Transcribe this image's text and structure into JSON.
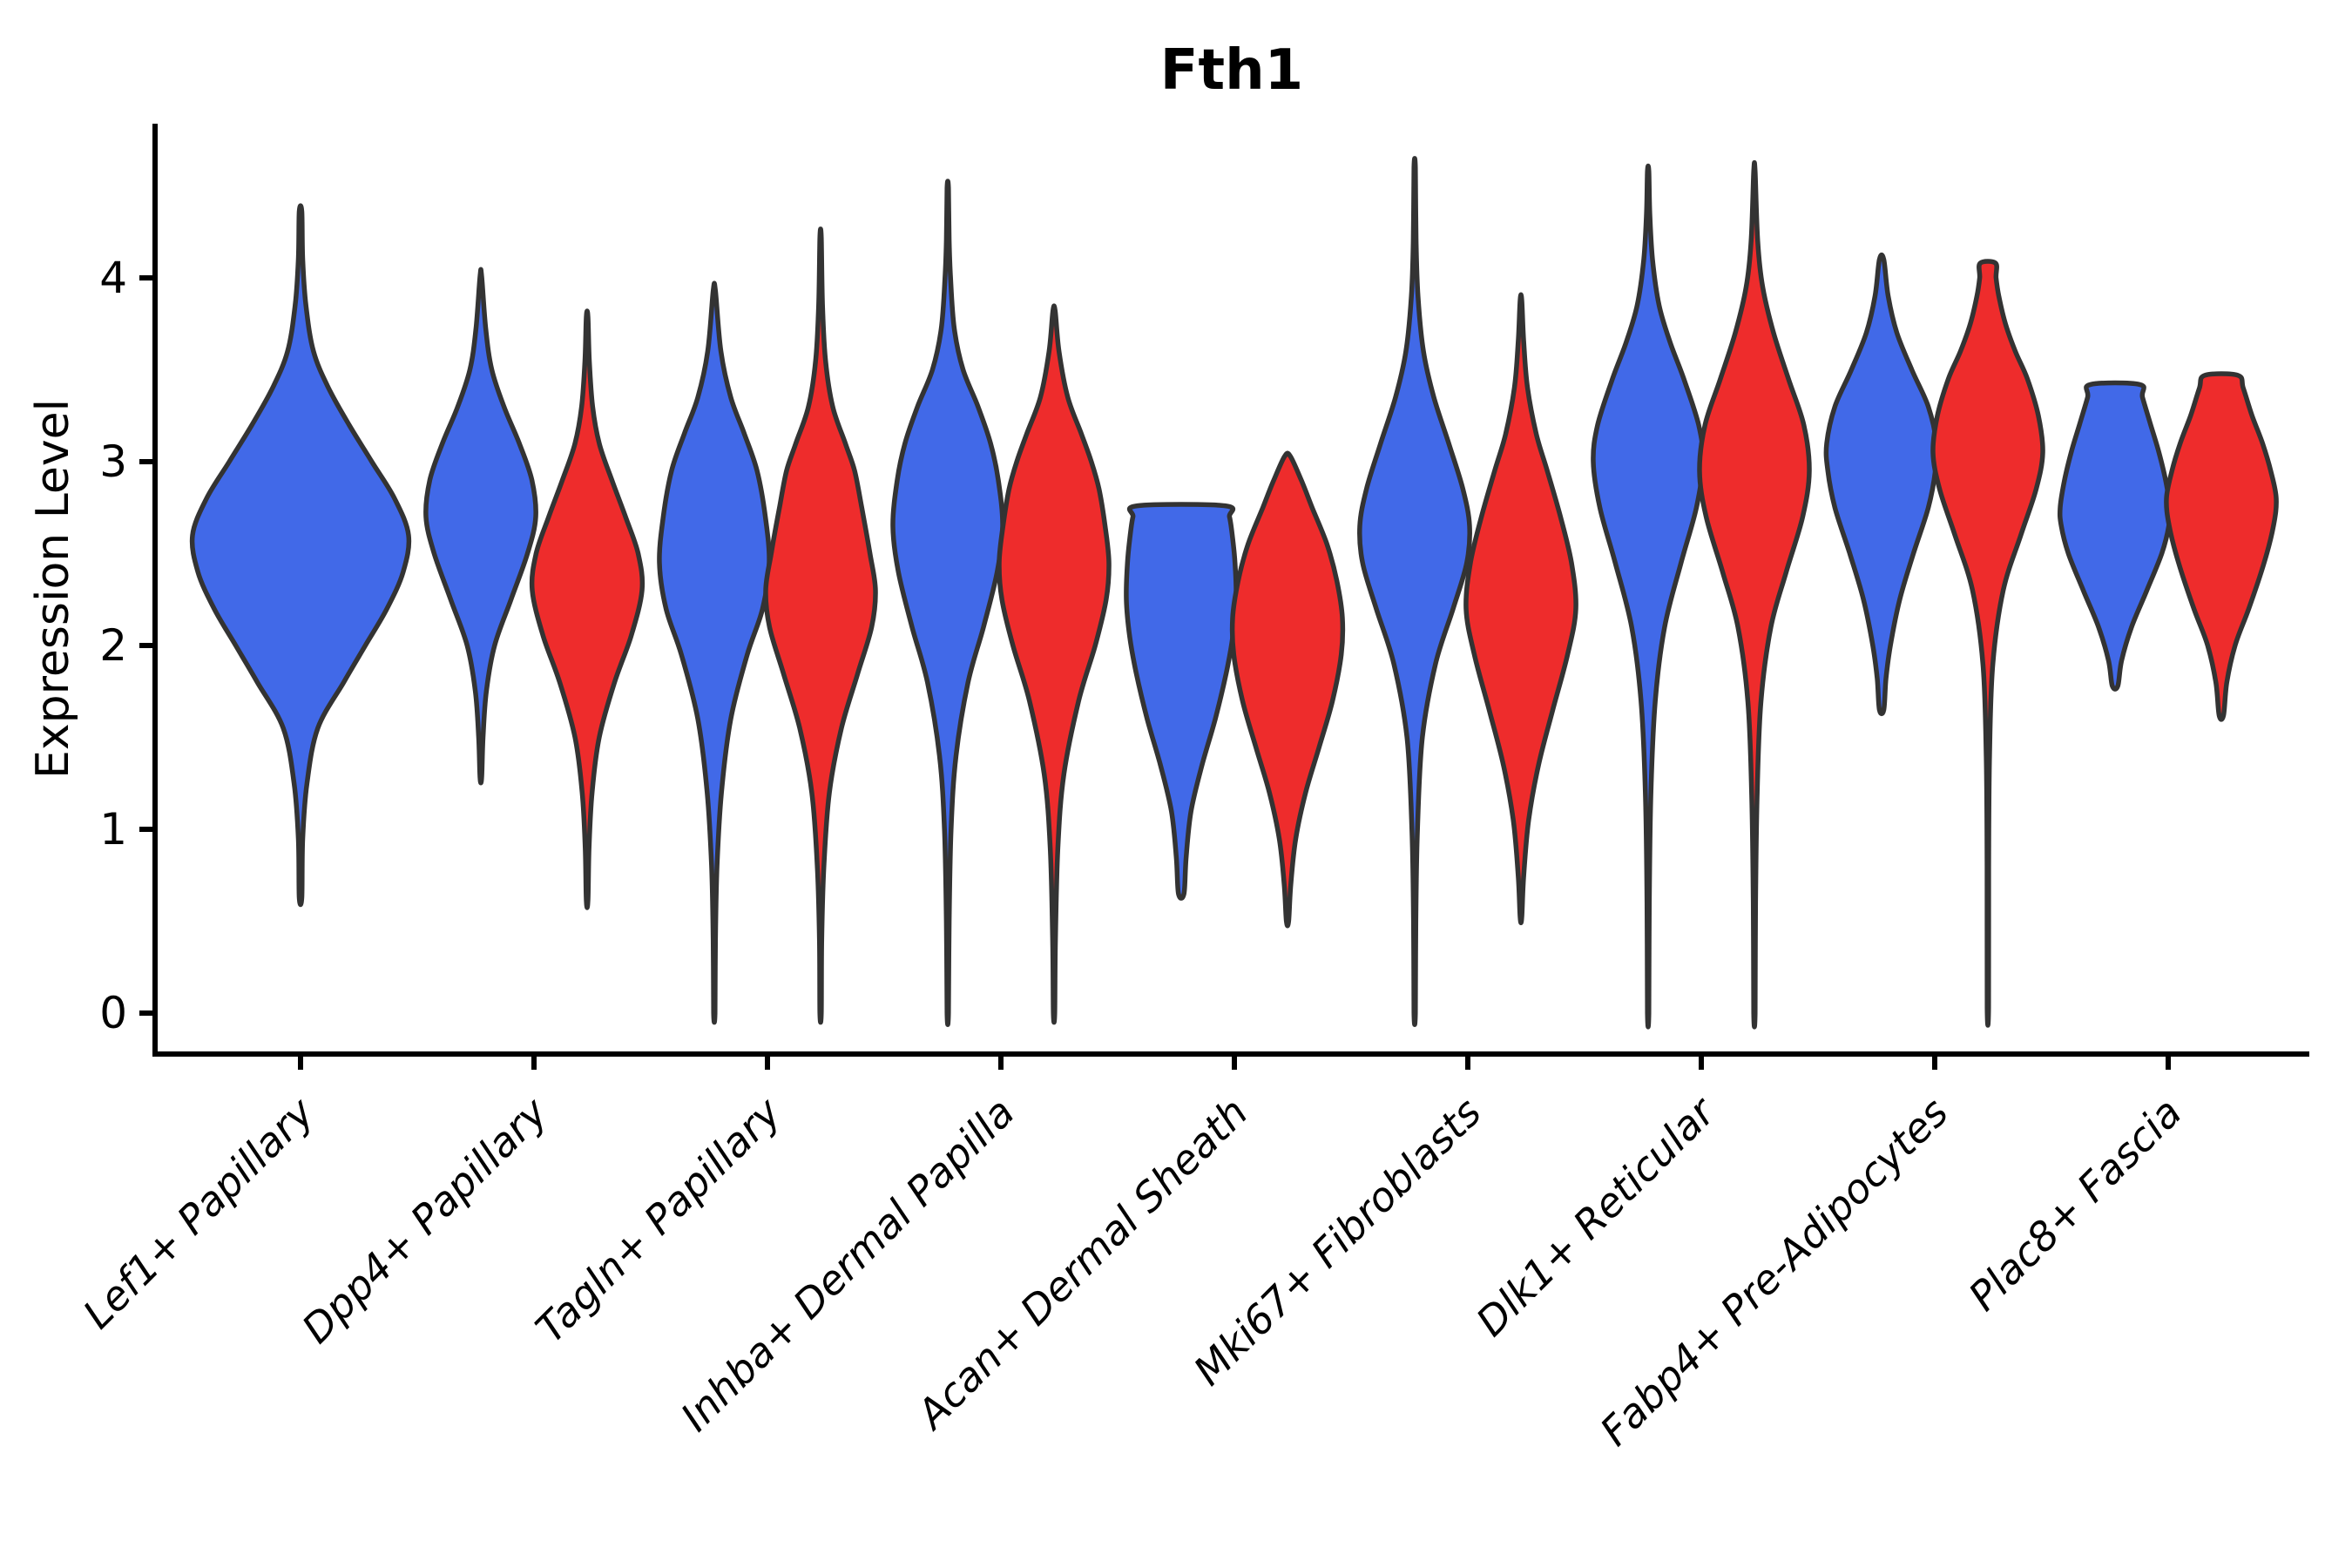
{
  "figure": {
    "background": "#ffffff"
  },
  "chart_data": {
    "type": "violin",
    "title": "Fth1",
    "ylabel": "Expression Level",
    "xlabel": "",
    "yticks": [
      0,
      1,
      2,
      3,
      4
    ],
    "ylim": [
      -0.22,
      4.85
    ],
    "grid": false,
    "legend": "none",
    "categories": [
      "Lef1+ Papillary",
      "Dpp4+ Papillary",
      "Tagln+ Papillary",
      "Inhba+ Dermal Papilla",
      "Acan+ Dermal Sheath",
      "Mki67+ Fibroblasts",
      "Dlk1+ Reticular",
      "Fabp4+ Pre-Adipocytes",
      "Plac8+ Fascia"
    ],
    "series_colors": {
      "blue": "#4169E8",
      "red": "#EE2C2C"
    },
    "outline_color": "#333333",
    "axis_color": "#000000",
    "violins": [
      {
        "category": "Lef1+ Papillary",
        "group": "blue",
        "width": "full",
        "span": [
          0.63,
          4.36
        ],
        "profile": [
          [
            0.63,
            0.01
          ],
          [
            0.95,
            0.02
          ],
          [
            1.25,
            0.06
          ],
          [
            1.55,
            0.16
          ],
          [
            1.8,
            0.4
          ],
          [
            2.0,
            0.6
          ],
          [
            2.2,
            0.8
          ],
          [
            2.4,
            0.95
          ],
          [
            2.6,
            1.0
          ],
          [
            2.8,
            0.87
          ],
          [
            3.0,
            0.66
          ],
          [
            3.2,
            0.45
          ],
          [
            3.4,
            0.26
          ],
          [
            3.6,
            0.12
          ],
          [
            3.85,
            0.05
          ],
          [
            4.1,
            0.02
          ],
          [
            4.36,
            0.01
          ]
        ]
      },
      {
        "category": "Dpp4+ Papillary",
        "group": "blue",
        "width": "half",
        "span": [
          1.28,
          4.01
        ],
        "profile": [
          [
            1.28,
            0.015
          ],
          [
            1.5,
            0.04
          ],
          [
            1.75,
            0.1
          ],
          [
            2.0,
            0.25
          ],
          [
            2.25,
            0.55
          ],
          [
            2.5,
            0.85
          ],
          [
            2.7,
            1.0
          ],
          [
            2.9,
            0.93
          ],
          [
            3.1,
            0.7
          ],
          [
            3.3,
            0.42
          ],
          [
            3.5,
            0.2
          ],
          [
            3.72,
            0.09
          ],
          [
            4.01,
            0.015
          ]
        ]
      },
      {
        "category": "Dpp4+ Papillary",
        "group": "red",
        "width": "half",
        "span": [
          0.61,
          3.79
        ],
        "profile": [
          [
            0.61,
            0.015
          ],
          [
            0.9,
            0.035
          ],
          [
            1.2,
            0.09
          ],
          [
            1.5,
            0.22
          ],
          [
            1.8,
            0.5
          ],
          [
            2.05,
            0.8
          ],
          [
            2.3,
            1.0
          ],
          [
            2.5,
            0.93
          ],
          [
            2.7,
            0.7
          ],
          [
            2.9,
            0.45
          ],
          [
            3.1,
            0.22
          ],
          [
            3.3,
            0.1
          ],
          [
            3.55,
            0.04
          ],
          [
            3.79,
            0.015
          ]
        ]
      },
      {
        "category": "Tagln+ Papillary",
        "group": "blue",
        "width": "half",
        "span": [
          0.0,
          3.93
        ],
        "profile": [
          [
            0.0,
            0.012
          ],
          [
            0.4,
            0.02
          ],
          [
            0.8,
            0.05
          ],
          [
            1.2,
            0.13
          ],
          [
            1.6,
            0.3
          ],
          [
            1.95,
            0.6
          ],
          [
            2.2,
            0.88
          ],
          [
            2.45,
            1.0
          ],
          [
            2.7,
            0.93
          ],
          [
            2.95,
            0.78
          ],
          [
            3.15,
            0.55
          ],
          [
            3.35,
            0.3
          ],
          [
            3.6,
            0.12
          ],
          [
            3.93,
            0.02
          ]
        ]
      },
      {
        "category": "Tagln+ Papillary",
        "group": "red",
        "width": "half",
        "span": [
          0.0,
          4.22
        ],
        "profile": [
          [
            0.0,
            0.012
          ],
          [
            0.4,
            0.02
          ],
          [
            0.8,
            0.06
          ],
          [
            1.2,
            0.16
          ],
          [
            1.55,
            0.38
          ],
          [
            1.85,
            0.68
          ],
          [
            2.1,
            0.93
          ],
          [
            2.3,
            1.0
          ],
          [
            2.5,
            0.9
          ],
          [
            2.75,
            0.75
          ],
          [
            2.95,
            0.62
          ],
          [
            3.1,
            0.45
          ],
          [
            3.3,
            0.22
          ],
          [
            3.55,
            0.09
          ],
          [
            3.85,
            0.035
          ],
          [
            4.22,
            0.012
          ]
        ]
      },
      {
        "category": "Inhba+ Dermal Papilla",
        "group": "blue",
        "width": "half",
        "span": [
          0.0,
          4.49
        ],
        "profile": [
          [
            0.0,
            0.012
          ],
          [
            0.5,
            0.025
          ],
          [
            1.0,
            0.06
          ],
          [
            1.4,
            0.15
          ],
          [
            1.8,
            0.37
          ],
          [
            2.1,
            0.65
          ],
          [
            2.4,
            0.9
          ],
          [
            2.65,
            1.0
          ],
          [
            2.9,
            0.92
          ],
          [
            3.1,
            0.78
          ],
          [
            3.3,
            0.55
          ],
          [
            3.5,
            0.28
          ],
          [
            3.72,
            0.12
          ],
          [
            4.0,
            0.05
          ],
          [
            4.2,
            0.025
          ],
          [
            4.49,
            0.012
          ]
        ]
      },
      {
        "category": "Inhba+ Dermal Papilla",
        "group": "red",
        "width": "half",
        "span": [
          0.0,
          3.82
        ],
        "profile": [
          [
            0.0,
            0.012
          ],
          [
            0.4,
            0.025
          ],
          [
            0.9,
            0.07
          ],
          [
            1.3,
            0.18
          ],
          [
            1.7,
            0.45
          ],
          [
            2.0,
            0.75
          ],
          [
            2.25,
            0.95
          ],
          [
            2.45,
            1.0
          ],
          [
            2.65,
            0.93
          ],
          [
            2.85,
            0.82
          ],
          [
            3.0,
            0.68
          ],
          [
            3.15,
            0.5
          ],
          [
            3.35,
            0.25
          ],
          [
            3.6,
            0.09
          ],
          [
            3.82,
            0.02
          ]
        ]
      },
      {
        "category": "Acan+ Dermal Sheath",
        "group": "blue",
        "width": "half",
        "span": [
          0.65,
          2.76
        ],
        "cap": "flat",
        "profile": [
          [
            0.65,
            0.05
          ],
          [
            0.85,
            0.09
          ],
          [
            1.1,
            0.18
          ],
          [
            1.35,
            0.38
          ],
          [
            1.6,
            0.62
          ],
          [
            1.85,
            0.82
          ],
          [
            2.05,
            0.94
          ],
          [
            2.25,
            1.0
          ],
          [
            2.45,
            0.98
          ],
          [
            2.6,
            0.93
          ],
          [
            2.7,
            0.88
          ],
          [
            2.76,
            0.8
          ]
        ]
      },
      {
        "category": "Acan+ Dermal Sheath",
        "group": "red",
        "width": "half",
        "span": [
          0.5,
          3.03
        ],
        "profile": [
          [
            0.5,
            0.02
          ],
          [
            0.7,
            0.06
          ],
          [
            0.95,
            0.15
          ],
          [
            1.2,
            0.33
          ],
          [
            1.45,
            0.58
          ],
          [
            1.7,
            0.82
          ],
          [
            1.95,
            0.98
          ],
          [
            2.15,
            1.0
          ],
          [
            2.35,
            0.9
          ],
          [
            2.55,
            0.72
          ],
          [
            2.75,
            0.45
          ],
          [
            2.9,
            0.25
          ],
          [
            3.03,
            0.05
          ]
        ]
      },
      {
        "category": "Mki67+ Fibroblasts",
        "group": "blue",
        "width": "half",
        "span": [
          0.0,
          4.6
        ],
        "profile": [
          [
            0.0,
            0.01
          ],
          [
            0.5,
            0.02
          ],
          [
            1.0,
            0.05
          ],
          [
            1.5,
            0.14
          ],
          [
            1.9,
            0.38
          ],
          [
            2.2,
            0.7
          ],
          [
            2.45,
            0.95
          ],
          [
            2.65,
            1.0
          ],
          [
            2.85,
            0.88
          ],
          [
            3.1,
            0.62
          ],
          [
            3.35,
            0.35
          ],
          [
            3.6,
            0.16
          ],
          [
            3.9,
            0.06
          ],
          [
            4.2,
            0.025
          ],
          [
            4.6,
            0.01
          ]
        ]
      },
      {
        "category": "Mki67+ Fibroblasts",
        "group": "red",
        "width": "half",
        "span": [
          0.52,
          3.88
        ],
        "profile": [
          [
            0.52,
            0.015
          ],
          [
            0.75,
            0.05
          ],
          [
            1.05,
            0.14
          ],
          [
            1.35,
            0.32
          ],
          [
            1.65,
            0.58
          ],
          [
            1.95,
            0.85
          ],
          [
            2.2,
            1.0
          ],
          [
            2.45,
            0.92
          ],
          [
            2.7,
            0.72
          ],
          [
            2.95,
            0.48
          ],
          [
            3.15,
            0.28
          ],
          [
            3.4,
            0.12
          ],
          [
            3.65,
            0.05
          ],
          [
            3.88,
            0.015
          ]
        ]
      },
      {
        "category": "Dlk1+ Reticular",
        "group": "blue",
        "width": "half",
        "span": [
          0.0,
          4.58
        ],
        "profile": [
          [
            0.0,
            0.01
          ],
          [
            0.6,
            0.02
          ],
          [
            1.2,
            0.05
          ],
          [
            1.7,
            0.13
          ],
          [
            2.1,
            0.3
          ],
          [
            2.45,
            0.6
          ],
          [
            2.75,
            0.88
          ],
          [
            3.0,
            1.0
          ],
          [
            3.2,
            0.92
          ],
          [
            3.45,
            0.65
          ],
          [
            3.65,
            0.4
          ],
          [
            3.85,
            0.2
          ],
          [
            4.1,
            0.08
          ],
          [
            4.35,
            0.03
          ],
          [
            4.58,
            0.012
          ]
        ]
      },
      {
        "category": "Dlk1+ Reticular",
        "group": "red",
        "width": "half",
        "span": [
          0.0,
          4.58
        ],
        "profile": [
          [
            0.0,
            0.01
          ],
          [
            0.6,
            0.02
          ],
          [
            1.2,
            0.05
          ],
          [
            1.7,
            0.12
          ],
          [
            2.1,
            0.3
          ],
          [
            2.4,
            0.58
          ],
          [
            2.7,
            0.88
          ],
          [
            2.95,
            1.0
          ],
          [
            3.2,
            0.9
          ],
          [
            3.45,
            0.62
          ],
          [
            3.7,
            0.35
          ],
          [
            3.95,
            0.15
          ],
          [
            4.2,
            0.06
          ],
          [
            4.58,
            0.012
          ]
        ]
      },
      {
        "category": "Fabp4+ Pre-Adipocytes",
        "group": "blue",
        "width": "half",
        "span": [
          1.65,
          4.1
        ],
        "profile": [
          [
            1.65,
            0.04
          ],
          [
            1.82,
            0.08
          ],
          [
            2.0,
            0.16
          ],
          [
            2.25,
            0.33
          ],
          [
            2.5,
            0.58
          ],
          [
            2.75,
            0.85
          ],
          [
            2.95,
            0.98
          ],
          [
            3.1,
            1.0
          ],
          [
            3.3,
            0.85
          ],
          [
            3.5,
            0.55
          ],
          [
            3.7,
            0.28
          ],
          [
            3.9,
            0.12
          ],
          [
            4.1,
            0.04
          ]
        ]
      },
      {
        "category": "Fabp4+ Pre-Adipocytes",
        "group": "red",
        "width": "half",
        "span": [
          0.03,
          4.08
        ],
        "cap": "flat",
        "profile": [
          [
            0.03,
            0.008
          ],
          [
            0.8,
            0.015
          ],
          [
            1.4,
            0.03
          ],
          [
            1.9,
            0.09
          ],
          [
            2.3,
            0.28
          ],
          [
            2.6,
            0.6
          ],
          [
            2.85,
            0.88
          ],
          [
            3.05,
            1.0
          ],
          [
            3.25,
            0.92
          ],
          [
            3.45,
            0.72
          ],
          [
            3.6,
            0.5
          ],
          [
            3.75,
            0.32
          ],
          [
            3.9,
            0.2
          ],
          [
            4.0,
            0.15
          ],
          [
            4.08,
            0.14
          ]
        ]
      },
      {
        "category": "Plac8+ Fascia",
        "group": "blue",
        "width": "half",
        "span": [
          1.78,
          3.42
        ],
        "cap": "flat",
        "profile": [
          [
            1.78,
            0.05
          ],
          [
            1.92,
            0.12
          ],
          [
            2.1,
            0.3
          ],
          [
            2.3,
            0.58
          ],
          [
            2.5,
            0.85
          ],
          [
            2.65,
            0.98
          ],
          [
            2.75,
            1.0
          ],
          [
            2.9,
            0.92
          ],
          [
            3.05,
            0.8
          ],
          [
            3.2,
            0.65
          ],
          [
            3.35,
            0.5
          ],
          [
            3.42,
            0.45
          ]
        ]
      },
      {
        "category": "Plac8+ Fascia",
        "group": "red",
        "width": "half",
        "span": [
          1.62,
          3.47
        ],
        "cap": "flat",
        "profile": [
          [
            1.62,
            0.04
          ],
          [
            1.8,
            0.1
          ],
          [
            2.0,
            0.25
          ],
          [
            2.2,
            0.5
          ],
          [
            2.45,
            0.78
          ],
          [
            2.65,
            0.95
          ],
          [
            2.8,
            1.0
          ],
          [
            2.95,
            0.9
          ],
          [
            3.1,
            0.75
          ],
          [
            3.25,
            0.56
          ],
          [
            3.4,
            0.4
          ],
          [
            3.47,
            0.3
          ]
        ]
      }
    ]
  }
}
